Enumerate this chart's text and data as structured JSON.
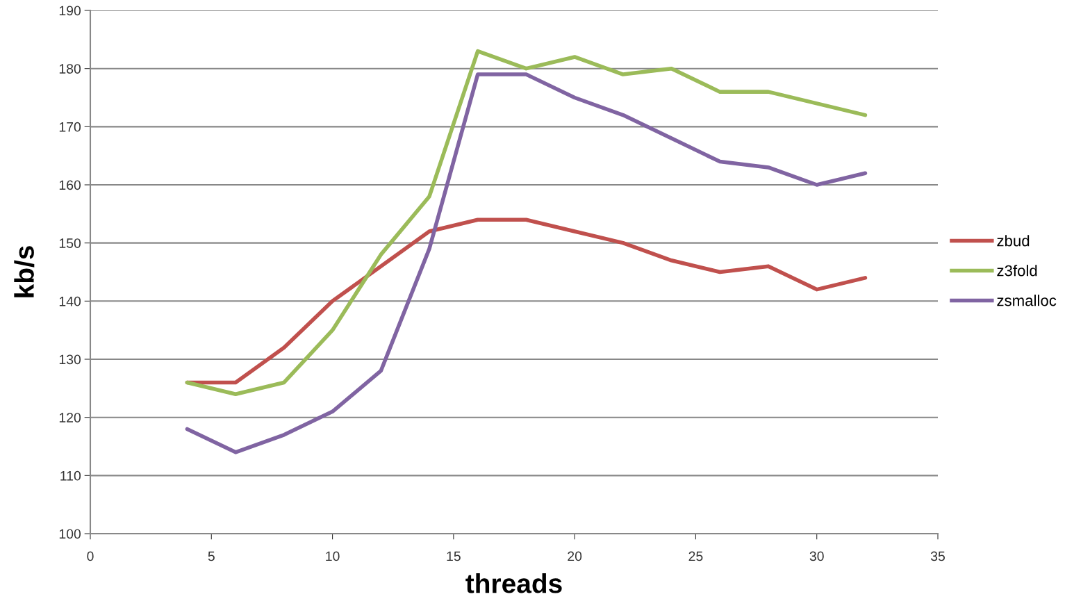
{
  "chart_data": {
    "type": "line",
    "xlabel": "threads",
    "ylabel": "kb/s",
    "xlim": [
      0,
      35
    ],
    "xticks": [
      0,
      5,
      10,
      15,
      20,
      25,
      30,
      35
    ],
    "ylim": [
      100,
      190
    ],
    "yticks": [
      100,
      110,
      120,
      130,
      140,
      150,
      160,
      170,
      180,
      190
    ],
    "grid": "y",
    "legend": "right",
    "marker": "none",
    "line_style": "solid",
    "x": [
      4,
      6,
      8,
      10,
      12,
      14,
      16,
      18,
      20,
      22,
      24,
      26,
      28,
      30,
      32
    ],
    "series": [
      {
        "name": "zbud",
        "color": "#c0504d",
        "values": [
          126,
          126,
          132,
          140,
          146,
          152,
          154,
          154,
          152,
          150,
          147,
          145,
          146,
          142,
          144
        ]
      },
      {
        "name": "z3fold",
        "color": "#9bbb59",
        "values": [
          126,
          124,
          126,
          135,
          148,
          158,
          183,
          180,
          182,
          179,
          180,
          176,
          176,
          174,
          172
        ]
      },
      {
        "name": "zsmalloc",
        "color": "#8064a2",
        "values": [
          118,
          114,
          117,
          121,
          128,
          149,
          179,
          179,
          175,
          172,
          168,
          164,
          163,
          160,
          162
        ]
      }
    ]
  }
}
